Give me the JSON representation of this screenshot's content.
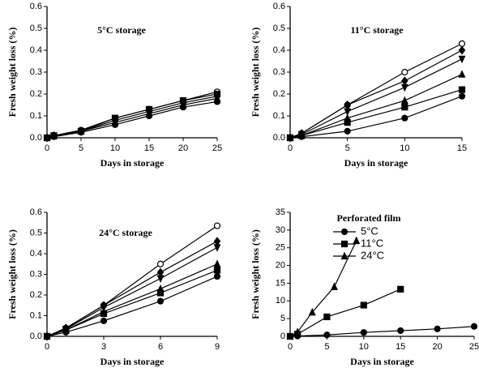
{
  "chart_data": [
    {
      "type": "line",
      "title": "5°C storage",
      "xlabel": "Days in storage",
      "ylabel": "Fresh weight loss (%)",
      "x": [
        0,
        1,
        5,
        10,
        15,
        20,
        25
      ],
      "xlim": [
        0,
        25
      ],
      "xticks": [
        0,
        5,
        10,
        15,
        20,
        25
      ],
      "ylim": [
        0,
        0.6
      ],
      "yticks": [
        {
          "value": 0,
          "label": "0.0"
        },
        0.1,
        0.2,
        0.3,
        0.4,
        0.5,
        0.6
      ],
      "series": [
        {
          "color": "#000000",
          "marker": "open-circle",
          "values": [
            0,
            0.01,
            0.035,
            0.09,
            0.13,
            0.17,
            0.21
          ]
        },
        {
          "color": "#000000",
          "marker": "square",
          "values": [
            0,
            0.01,
            0.03,
            0.09,
            0.13,
            0.17,
            0.2
          ]
        },
        {
          "color": "#000000",
          "marker": "diamond",
          "values": [
            0,
            0.01,
            0.03,
            0.08,
            0.12,
            0.16,
            0.19
          ]
        },
        {
          "color": "#000000",
          "marker": "triangle",
          "values": [
            0,
            0.008,
            0.03,
            0.07,
            0.11,
            0.15,
            0.18
          ]
        },
        {
          "color": "#000000",
          "marker": "circle",
          "values": [
            0,
            0.005,
            0.025,
            0.06,
            0.1,
            0.14,
            0.165
          ]
        }
      ]
    },
    {
      "type": "line",
      "title": "11°C storage",
      "xlabel": "Days in storage",
      "ylabel": "Fresh weight loss (%)",
      "x": [
        0,
        1,
        5,
        10,
        15
      ],
      "xlim": [
        0,
        15
      ],
      "xticks": [
        0,
        5,
        10,
        15
      ],
      "ylim": [
        0,
        0.6
      ],
      "yticks": [
        {
          "value": 0,
          "label": "0.0"
        },
        0.1,
        0.2,
        0.3,
        0.4,
        0.5,
        0.6
      ],
      "series": [
        {
          "color": "#000000",
          "marker": "open-circle",
          "values": [
            0,
            0.02,
            0.15,
            0.3,
            0.43
          ]
        },
        {
          "color": "#000000",
          "marker": "diamond",
          "values": [
            0,
            0.02,
            0.15,
            0.26,
            0.4
          ]
        },
        {
          "color": "#000000",
          "marker": "triangle-down",
          "values": [
            0,
            0.015,
            0.12,
            0.23,
            0.36
          ]
        },
        {
          "color": "#000000",
          "marker": "triangle",
          "values": [
            0,
            0.01,
            0.09,
            0.17,
            0.29
          ]
        },
        {
          "color": "#000000",
          "marker": "square",
          "values": [
            0,
            0.01,
            0.07,
            0.14,
            0.22
          ]
        },
        {
          "color": "#000000",
          "marker": "circle",
          "values": [
            0,
            0.005,
            0.03,
            0.09,
            0.19
          ]
        }
      ]
    },
    {
      "type": "line",
      "title": "24°C storage",
      "xlabel": "Days in storage",
      "ylabel": "Fresh weight loss (%)",
      "x": [
        0,
        1,
        3,
        6,
        9
      ],
      "xlim": [
        0,
        9
      ],
      "xticks": [
        0,
        3,
        6,
        9
      ],
      "ylim": [
        0,
        0.6
      ],
      "yticks": [
        {
          "value": 0,
          "label": "0.0"
        },
        0.1,
        0.2,
        0.3,
        0.4,
        0.5,
        0.6
      ],
      "series": [
        {
          "color": "#000000",
          "marker": "open-circle",
          "values": [
            0,
            0.04,
            0.15,
            0.35,
            0.535
          ]
        },
        {
          "color": "#000000",
          "marker": "diamond",
          "values": [
            0,
            0.04,
            0.15,
            0.31,
            0.46
          ]
        },
        {
          "color": "#000000",
          "marker": "triangle-down",
          "values": [
            0,
            0.035,
            0.14,
            0.28,
            0.43
          ]
        },
        {
          "color": "#000000",
          "marker": "triangle",
          "values": [
            0,
            0.03,
            0.12,
            0.23,
            0.35
          ]
        },
        {
          "color": "#000000",
          "marker": "square",
          "values": [
            0,
            0.03,
            0.11,
            0.21,
            0.32
          ]
        },
        {
          "color": "#000000",
          "marker": "circle",
          "values": [
            0,
            0.02,
            0.075,
            0.17,
            0.29
          ]
        }
      ]
    },
    {
      "type": "line",
      "title": "Perforated film",
      "xlabel": "Days in storage",
      "ylabel": "Fresh weight loss (%)",
      "xlim": [
        0,
        25
      ],
      "xticks": [
        0,
        5,
        10,
        15,
        20,
        25
      ],
      "ylim": [
        0,
        35
      ],
      "yticks": [
        0,
        5,
        10,
        15,
        20,
        25,
        30,
        35
      ],
      "legend": "upper-center",
      "series": [
        {
          "name": "5°C",
          "color": "#000000",
          "marker": "circle",
          "x": [
            0,
            1,
            5,
            10,
            15,
            20,
            25
          ],
          "values": [
            0,
            0.1,
            0.4,
            1.1,
            1.6,
            2.1,
            2.8
          ]
        },
        {
          "name": "11°C",
          "color": "#000000",
          "marker": "square",
          "x": [
            0,
            1,
            5,
            10,
            15
          ],
          "values": [
            0,
            0.6,
            5.5,
            8.8,
            13.3
          ]
        },
        {
          "name": "24°C",
          "color": "#000000",
          "marker": "triangle",
          "x": [
            0,
            1,
            3,
            6,
            9
          ],
          "values": [
            0,
            1.2,
            6.8,
            14,
            27
          ]
        }
      ]
    }
  ]
}
